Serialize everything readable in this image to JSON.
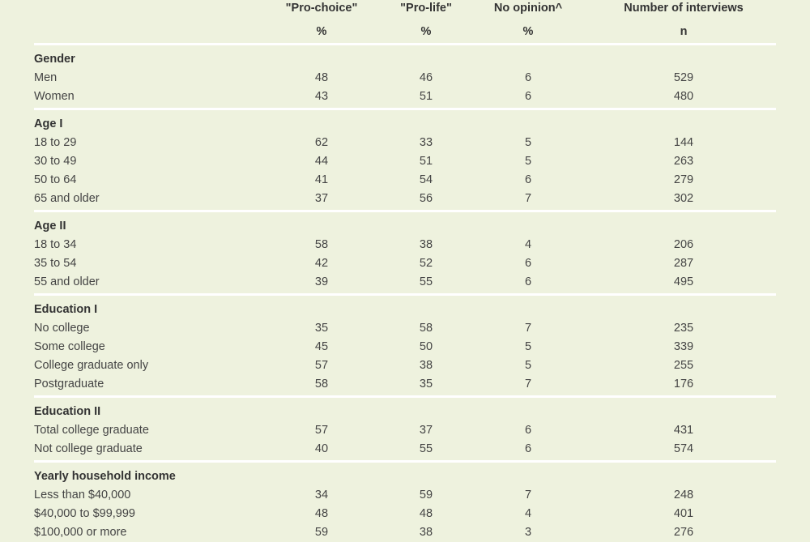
{
  "columns": [
    {
      "label": "\"Pro-choice\"",
      "unit": "%"
    },
    {
      "label": "\"Pro-life\"",
      "unit": "%"
    },
    {
      "label": "No opinion^",
      "unit": "%"
    },
    {
      "label": "Number of interviews",
      "unit": "n"
    }
  ],
  "groups": [
    {
      "title": "Gender",
      "rows": [
        [
          "Men",
          "48",
          "46",
          "6",
          "529"
        ],
        [
          "Women",
          "43",
          "51",
          "6",
          "480"
        ]
      ]
    },
    {
      "title": "Age I",
      "rows": [
        [
          "18 to 29",
          "62",
          "33",
          "5",
          "144"
        ],
        [
          "30 to 49",
          "44",
          "51",
          "5",
          "263"
        ],
        [
          "50 to 64",
          "41",
          "54",
          "6",
          "279"
        ],
        [
          "65 and older",
          "37",
          "56",
          "7",
          "302"
        ]
      ]
    },
    {
      "title": "Age II",
      "rows": [
        [
          "18 to 34",
          "58",
          "38",
          "4",
          "206"
        ],
        [
          "35 to 54",
          "42",
          "52",
          "6",
          "287"
        ],
        [
          "55 and older",
          "39",
          "55",
          "6",
          "495"
        ]
      ]
    },
    {
      "title": "Education I",
      "rows": [
        [
          "No college",
          "35",
          "58",
          "7",
          "235"
        ],
        [
          "Some college",
          "45",
          "50",
          "5",
          "339"
        ],
        [
          "College graduate only",
          "57",
          "38",
          "5",
          "255"
        ],
        [
          "Postgraduate",
          "58",
          "35",
          "7",
          "176"
        ]
      ]
    },
    {
      "title": "Education II",
      "rows": [
        [
          "Total college graduate",
          "57",
          "37",
          "6",
          "431"
        ],
        [
          "Not college graduate",
          "40",
          "55",
          "6",
          "574"
        ]
      ]
    },
    {
      "title": "Yearly household income",
      "rows": [
        [
          "Less than $40,000",
          "34",
          "59",
          "7",
          "248"
        ],
        [
          "$40,000 to $99,999",
          "48",
          "48",
          "4",
          "401"
        ],
        [
          "$100,000 or more",
          "59",
          "38",
          "3",
          "276"
        ]
      ]
    }
  ]
}
